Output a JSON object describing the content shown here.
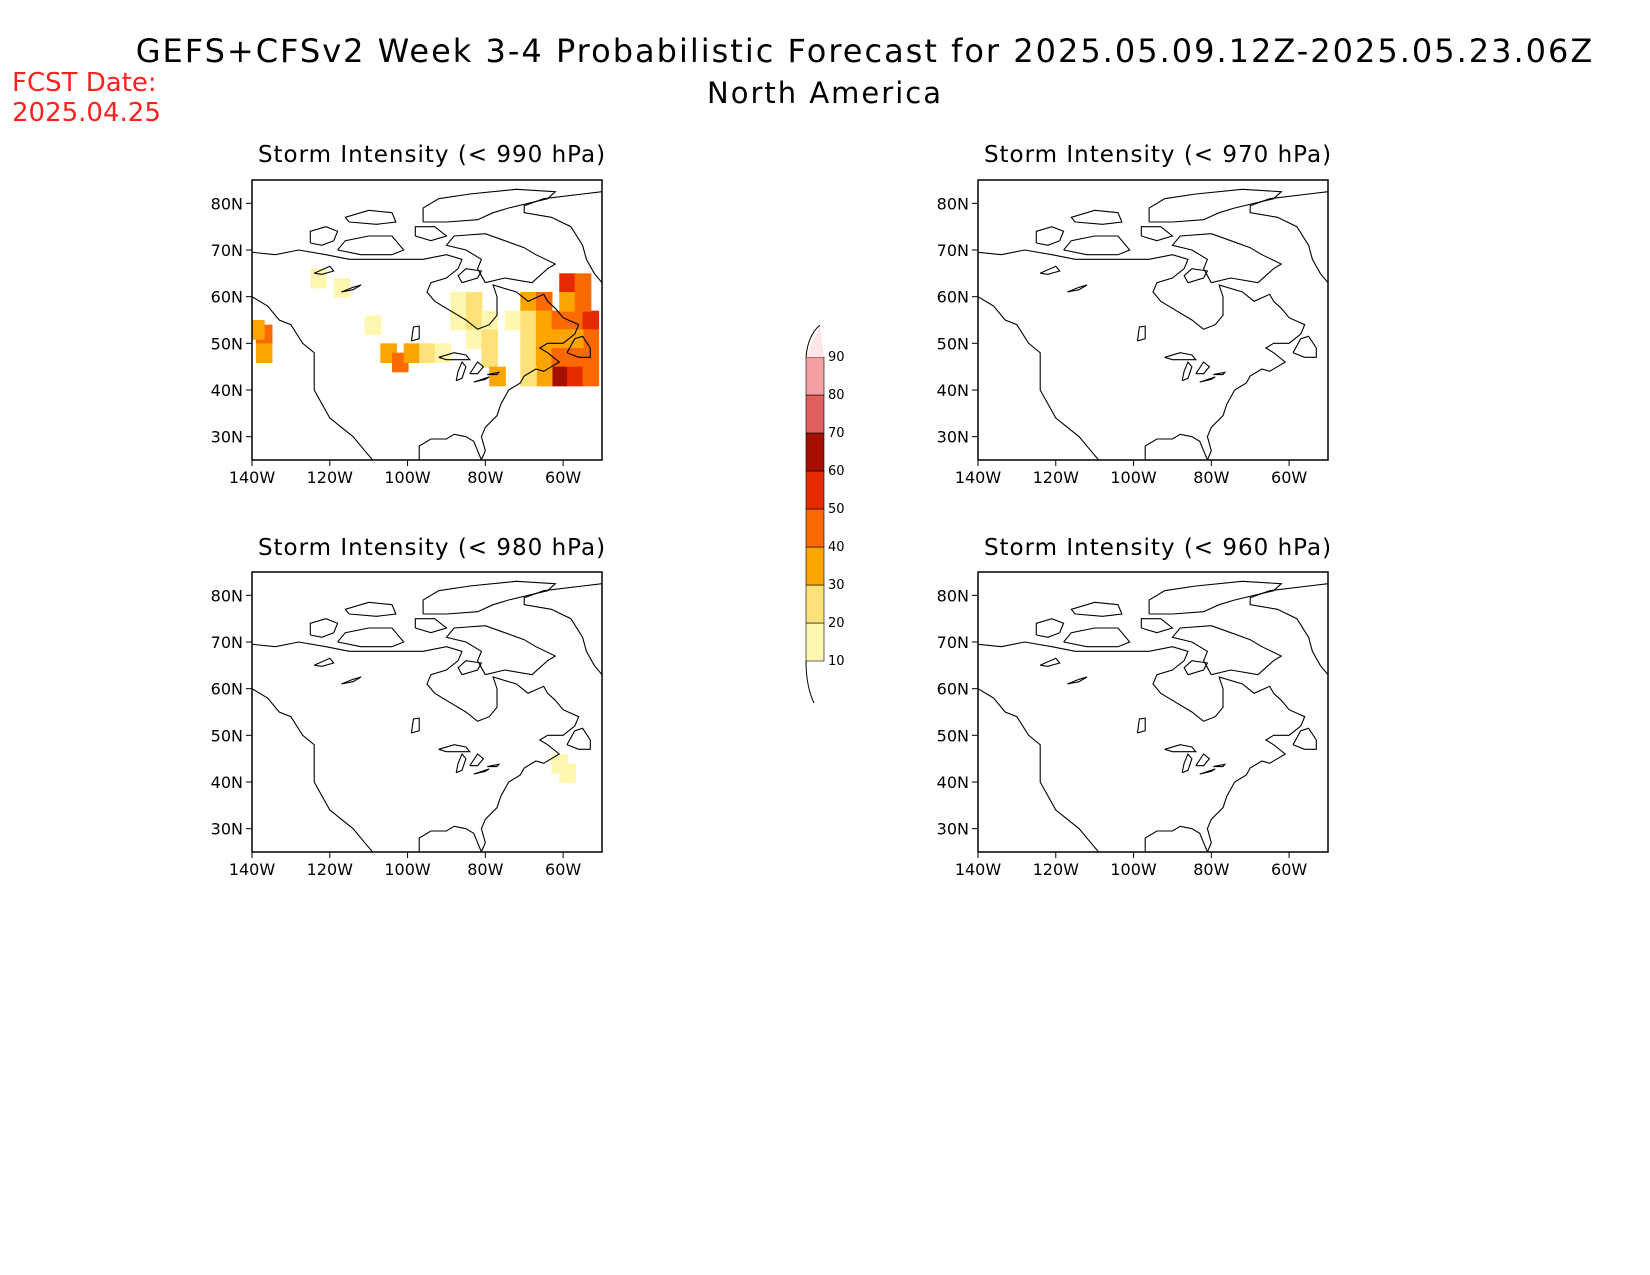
{
  "header": {
    "title": "GEFS+CFSv2 Week 3-4 Probabilistic Forecast for 2025.05.09.12Z-2025.05.23.06Z",
    "subtitle": "North America",
    "fcst_label": "FCST Date:",
    "fcst_date": "2025.04.25"
  },
  "axes": {
    "lon_ticks": [
      -140,
      -120,
      -100,
      -80,
      -60
    ],
    "lon_labels": [
      "140W",
      "120W",
      "100W",
      "80W",
      "60W"
    ],
    "lat_ticks": [
      30,
      40,
      50,
      60,
      70,
      80
    ],
    "lat_labels": [
      "30N",
      "40N",
      "50N",
      "60N",
      "70N",
      "80N"
    ],
    "lon_range": [
      -140,
      -50
    ],
    "lat_range": [
      25,
      85
    ]
  },
  "colorbar": {
    "levels": [
      "10",
      "20",
      "30",
      "40",
      "50",
      "60",
      "70",
      "80",
      "90"
    ],
    "colors": [
      "#fff7b0",
      "#fde27a",
      "#fca500",
      "#fb6a00",
      "#e62a00",
      "#a50f00",
      "#e06060",
      "#f4a0a0",
      "#fde6e6"
    ]
  },
  "panels": [
    {
      "title": "Storm Intensity (< 990 hPa)",
      "cells": [
        {
          "lon": -137,
          "lat": 52,
          "v": 40
        },
        {
          "lon": -137,
          "lat": 48,
          "v": 30
        },
        {
          "lon": -139,
          "lat": 53,
          "v": 30
        },
        {
          "lon": -123,
          "lat": 64,
          "v": 10
        },
        {
          "lon": -117,
          "lat": 62,
          "v": 10
        },
        {
          "lon": -109,
          "lat": 54,
          "v": 10
        },
        {
          "lon": -105,
          "lat": 48,
          "v": 30
        },
        {
          "lon": -102,
          "lat": 46,
          "v": 40
        },
        {
          "lon": -99,
          "lat": 48,
          "v": 30
        },
        {
          "lon": -95,
          "lat": 48,
          "v": 20
        },
        {
          "lon": -91,
          "lat": 48,
          "v": 10
        },
        {
          "lon": -87,
          "lat": 59,
          "v": 10
        },
        {
          "lon": -83,
          "lat": 59,
          "v": 20
        },
        {
          "lon": -87,
          "lat": 55,
          "v": 10
        },
        {
          "lon": -83,
          "lat": 55,
          "v": 20
        },
        {
          "lon": -79,
          "lat": 55,
          "v": 10
        },
        {
          "lon": -83,
          "lat": 51,
          "v": 10
        },
        {
          "lon": -79,
          "lat": 51,
          "v": 20
        },
        {
          "lon": -79,
          "lat": 47,
          "v": 20
        },
        {
          "lon": -77,
          "lat": 43,
          "v": 30
        },
        {
          "lon": -73,
          "lat": 55,
          "v": 10
        },
        {
          "lon": -69,
          "lat": 59,
          "v": 30
        },
        {
          "lon": -65,
          "lat": 59,
          "v": 40
        },
        {
          "lon": -69,
          "lat": 55,
          "v": 20
        },
        {
          "lon": -65,
          "lat": 55,
          "v": 30
        },
        {
          "lon": -61,
          "lat": 55,
          "v": 40
        },
        {
          "lon": -57,
          "lat": 55,
          "v": 40
        },
        {
          "lon": -53,
          "lat": 55,
          "v": 50
        },
        {
          "lon": -59,
          "lat": 63,
          "v": 50
        },
        {
          "lon": -55,
          "lat": 63,
          "v": 40
        },
        {
          "lon": -59,
          "lat": 59,
          "v": 30
        },
        {
          "lon": -55,
          "lat": 59,
          "v": 40
        },
        {
          "lon": -53,
          "lat": 51,
          "v": 40
        },
        {
          "lon": -69,
          "lat": 51,
          "v": 20
        },
        {
          "lon": -65,
          "lat": 51,
          "v": 30
        },
        {
          "lon": -61,
          "lat": 51,
          "v": 30
        },
        {
          "lon": -57,
          "lat": 51,
          "v": 30
        },
        {
          "lon": -69,
          "lat": 47,
          "v": 20
        },
        {
          "lon": -65,
          "lat": 47,
          "v": 30
        },
        {
          "lon": -61,
          "lat": 47,
          "v": 40
        },
        {
          "lon": -57,
          "lat": 47,
          "v": 40
        },
        {
          "lon": -53,
          "lat": 47,
          "v": 40
        },
        {
          "lon": -61,
          "lat": 43,
          "v": 60
        },
        {
          "lon": -57,
          "lat": 43,
          "v": 50
        },
        {
          "lon": -53,
          "lat": 43,
          "v": 40
        },
        {
          "lon": -65,
          "lat": 43,
          "v": 30
        },
        {
          "lon": -69,
          "lat": 43,
          "v": 20
        }
      ]
    },
    {
      "title": "Storm Intensity (< 970 hPa)",
      "cells": []
    },
    {
      "title": "Storm Intensity (< 980 hPa)",
      "cells": [
        {
          "lon": -61,
          "lat": 44,
          "v": 10
        },
        {
          "lon": -59,
          "lat": 42,
          "v": 10
        }
      ]
    },
    {
      "title": "Storm Intensity (< 960 hPa)",
      "cells": []
    }
  ]
}
